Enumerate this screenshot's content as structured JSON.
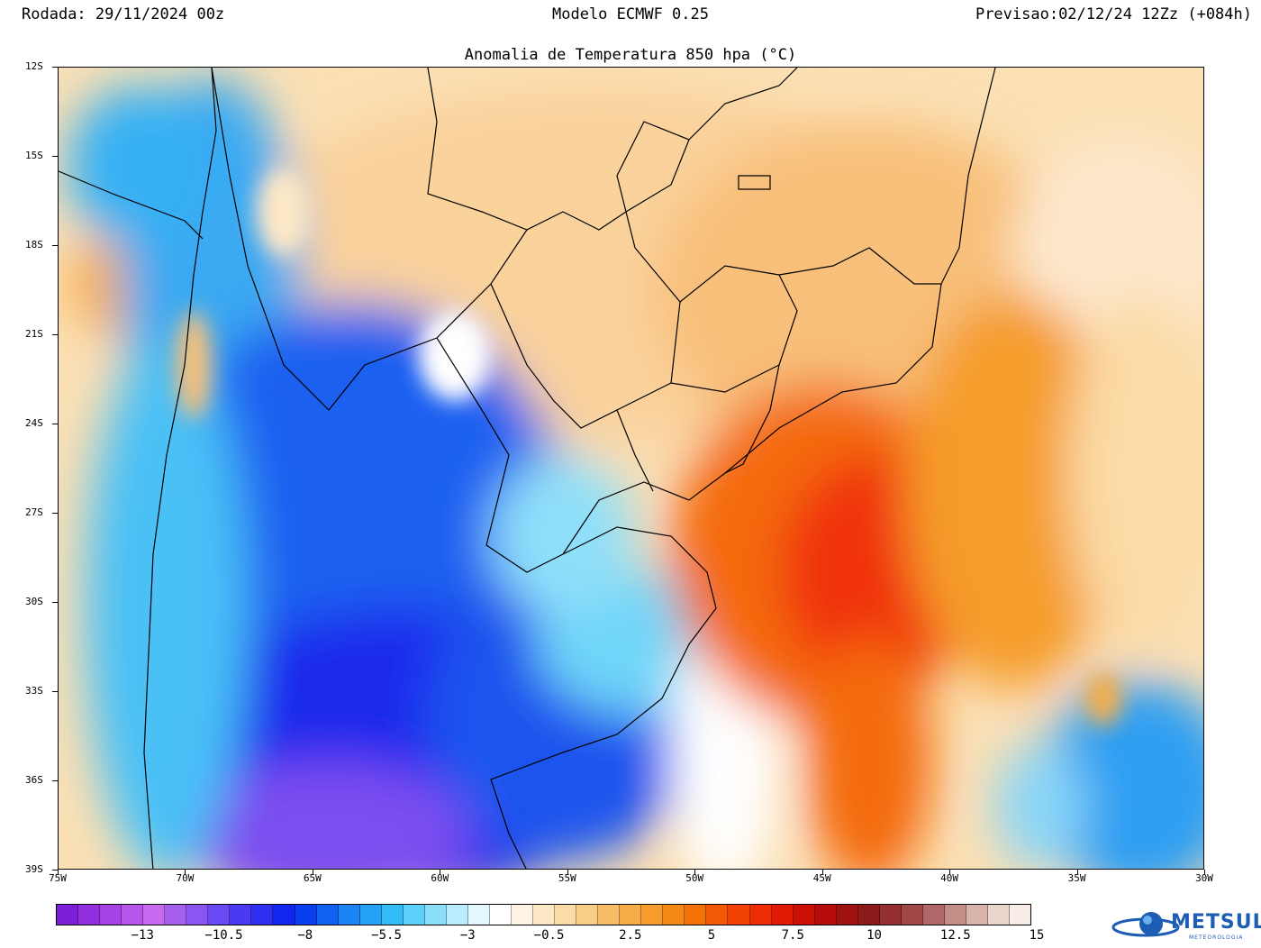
{
  "header": {
    "run": "Rodada: 29/11/2024 00z",
    "model": "Modelo ECMWF 0.25",
    "forecast": "Previsao:02/12/24 12Zz (+084h)"
  },
  "map": {
    "title": "Anomalia de Temperatura 850 hpa (°C)",
    "lat_labels": [
      "12S",
      "15S",
      "18S",
      "21S",
      "24S",
      "27S",
      "30S",
      "33S",
      "36S",
      "39S"
    ],
    "lon_labels": [
      "75W",
      "70W",
      "65W",
      "60W",
      "55W",
      "50W",
      "45W",
      "40W",
      "35W",
      "30W"
    ]
  },
  "colorbar": {
    "colors": [
      "#7d1fd6",
      "#9230e0",
      "#a643e6",
      "#b756eb",
      "#c66aef",
      "#a760ee",
      "#8a55f0",
      "#6a48f2",
      "#4a3bf2",
      "#2e2ff0",
      "#1226ee",
      "#0a3ff0",
      "#1262f2",
      "#1c84f4",
      "#25a1f5",
      "#32bcf6",
      "#5cd0f8",
      "#8bdffa",
      "#b9ecfc",
      "#e2f7fe",
      "#ffffff",
      "#fff4e3",
      "#fde8c6",
      "#fbdba6",
      "#f9cd86",
      "#f8be66",
      "#f6ad48",
      "#f59c2c",
      "#f48a16",
      "#f47108",
      "#f45a05",
      "#f34205",
      "#ee2c05",
      "#e01a05",
      "#cc1005",
      "#b60c0c",
      "#a01212",
      "#8c1a1a",
      "#963030",
      "#a04848",
      "#b06868",
      "#c48e86",
      "#d8b4aa",
      "#ead6cc",
      "#f7ece6"
    ],
    "labels": [
      "−13",
      "−10.5",
      "−8",
      "−5.5",
      "−3",
      "−0.5",
      "2.5",
      "5",
      "7.5",
      "10",
      "12.5",
      "15"
    ]
  },
  "logo": {
    "name": "METSUL",
    "subtitle": "METEOROLOGIA"
  }
}
